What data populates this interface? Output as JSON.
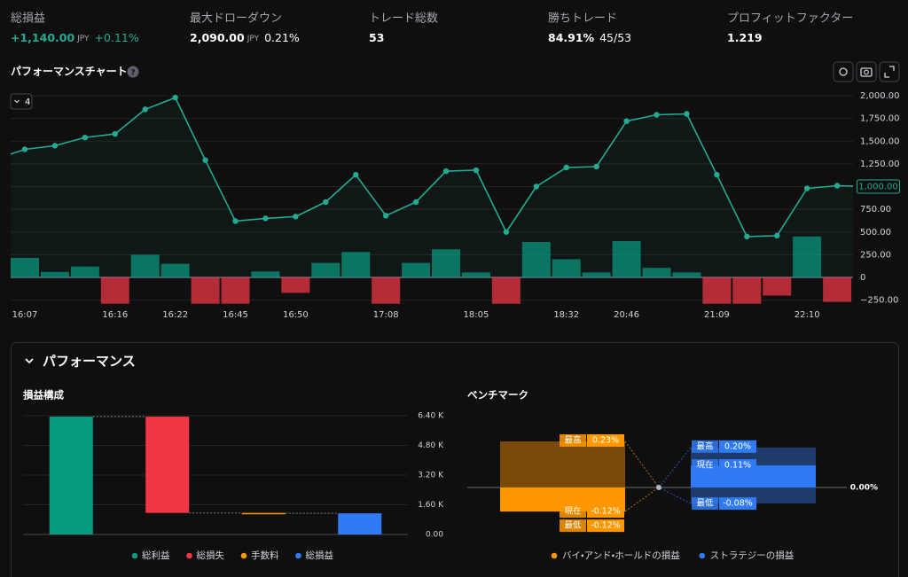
{
  "stats": [
    {
      "label": "総損益",
      "value": "+1,140.00",
      "unit": "JPY",
      "extra": "+0.11%",
      "color": "#22ab94"
    },
    {
      "label": "最大ドローダウン",
      "value": "2,090.00",
      "unit": "JPY",
      "extra": "0.21%"
    },
    {
      "label": "トレード総数",
      "value": "53"
    },
    {
      "label": "勝ちトレード",
      "value": "84.91%",
      "extra": "45/53"
    },
    {
      "label": "プロフィットファクター",
      "value": "1.219"
    }
  ],
  "performance_chart": {
    "type": "line",
    "title": "パフォーマンスチャート",
    "dropdown": "4",
    "categories": [
      null,
      "16:07",
      null,
      null,
      "16:16",
      null,
      "16:22",
      null,
      "16:45",
      null,
      "16:50",
      null,
      null,
      "17:08",
      null,
      null,
      "18:05",
      null,
      null,
      "18:32",
      null,
      "20:46",
      null,
      null,
      "21:09",
      null,
      null,
      "22:10",
      null,
      null
    ],
    "series": [
      {
        "type": "line",
        "color": "#22ab94",
        "values": [
          1300,
          1410,
          1450,
          1540,
          1580,
          1850,
          1980,
          1290,
          620,
          650,
          670,
          830,
          1130,
          680,
          830,
          1170,
          1180,
          500,
          1000,
          1210,
          1220,
          1720,
          1790,
          1800,
          1130,
          450,
          460,
          980,
          1010,
          1000
        ]
      },
      {
        "type": "bar",
        "up_color": "#089981",
        "down_color": "#f23645",
        "values": [
          null,
          215,
          60,
          120,
          -290,
          250,
          150,
          -290,
          -290,
          65,
          -170,
          160,
          280,
          -290,
          160,
          310,
          55,
          -290,
          390,
          200,
          55,
          400,
          105,
          55,
          -290,
          -290,
          -200,
          450,
          -270,
          null
        ]
      }
    ],
    "ylim": [
      -300,
      2100
    ],
    "yticks": [
      {
        "value": 2000,
        "label": "2,000.00"
      },
      {
        "value": 1750,
        "label": "1,750.00"
      },
      {
        "value": 1500,
        "label": "1,500.00"
      },
      {
        "value": 1250,
        "label": "1,250.00"
      },
      {
        "value": 1000,
        "label": "1,000.00"
      },
      {
        "value": 750,
        "label": "750.00"
      },
      {
        "value": 500,
        "label": "500.00"
      },
      {
        "value": 250,
        "label": "250.00"
      },
      0,
      {
        "value": -250,
        "label": "−250.00"
      }
    ],
    "grid": true,
    "last_value_label": "1,000.00"
  },
  "performance": {
    "title": "パフォーマンス",
    "pnl_breakdown": {
      "type": "waterfall",
      "title": "損益構成",
      "categories": [
        "総利益",
        "総損失",
        "手数料",
        "総損益"
      ],
      "values": [
        6350,
        5190,
        20,
        1140
      ],
      "steps": [
        "increase",
        "decrease",
        "decrease",
        "total"
      ],
      "colors": [
        "#089981",
        "#f23645",
        "#ff9800",
        "#2f7bf5"
      ],
      "ylim": [
        0,
        6400
      ],
      "yticks": [
        {
          "value": 0,
          "label": "0.00"
        },
        {
          "value": 1600,
          "label": "1.60 K"
        },
        {
          "value": 3200,
          "label": "3.20 K"
        },
        {
          "value": 4800,
          "label": "4.80 K"
        },
        {
          "value": 6400,
          "label": "6.40 K"
        }
      ],
      "grid": true
    },
    "benchmark": {
      "type": "range",
      "title": "ベンチマーク",
      "tag_labels": [
        "最高",
        "現在",
        "最低"
      ],
      "series": [
        {
          "name": "バイ・アンド・ホールドの損益",
          "color": "#ff9800",
          "dim_color": "#7a4a0a",
          "values": [
            0.23,
            -0.12,
            -0.12
          ],
          "value_labels": [
            "0.23%",
            "-0.12%",
            "-0.12%"
          ]
        },
        {
          "name": "ストラテジーの損益",
          "color": "#2f7bf5",
          "dim_color": "#1f3b6e",
          "values": [
            0.2,
            0.11,
            -0.08
          ],
          "value_labels": [
            "0.20%",
            "0.11%",
            "-0.08%"
          ]
        }
      ],
      "ylim": [
        -0.25,
        0.3
      ],
      "yticks": [
        {
          "value": 0,
          "label": "0.00%"
        }
      ]
    }
  }
}
